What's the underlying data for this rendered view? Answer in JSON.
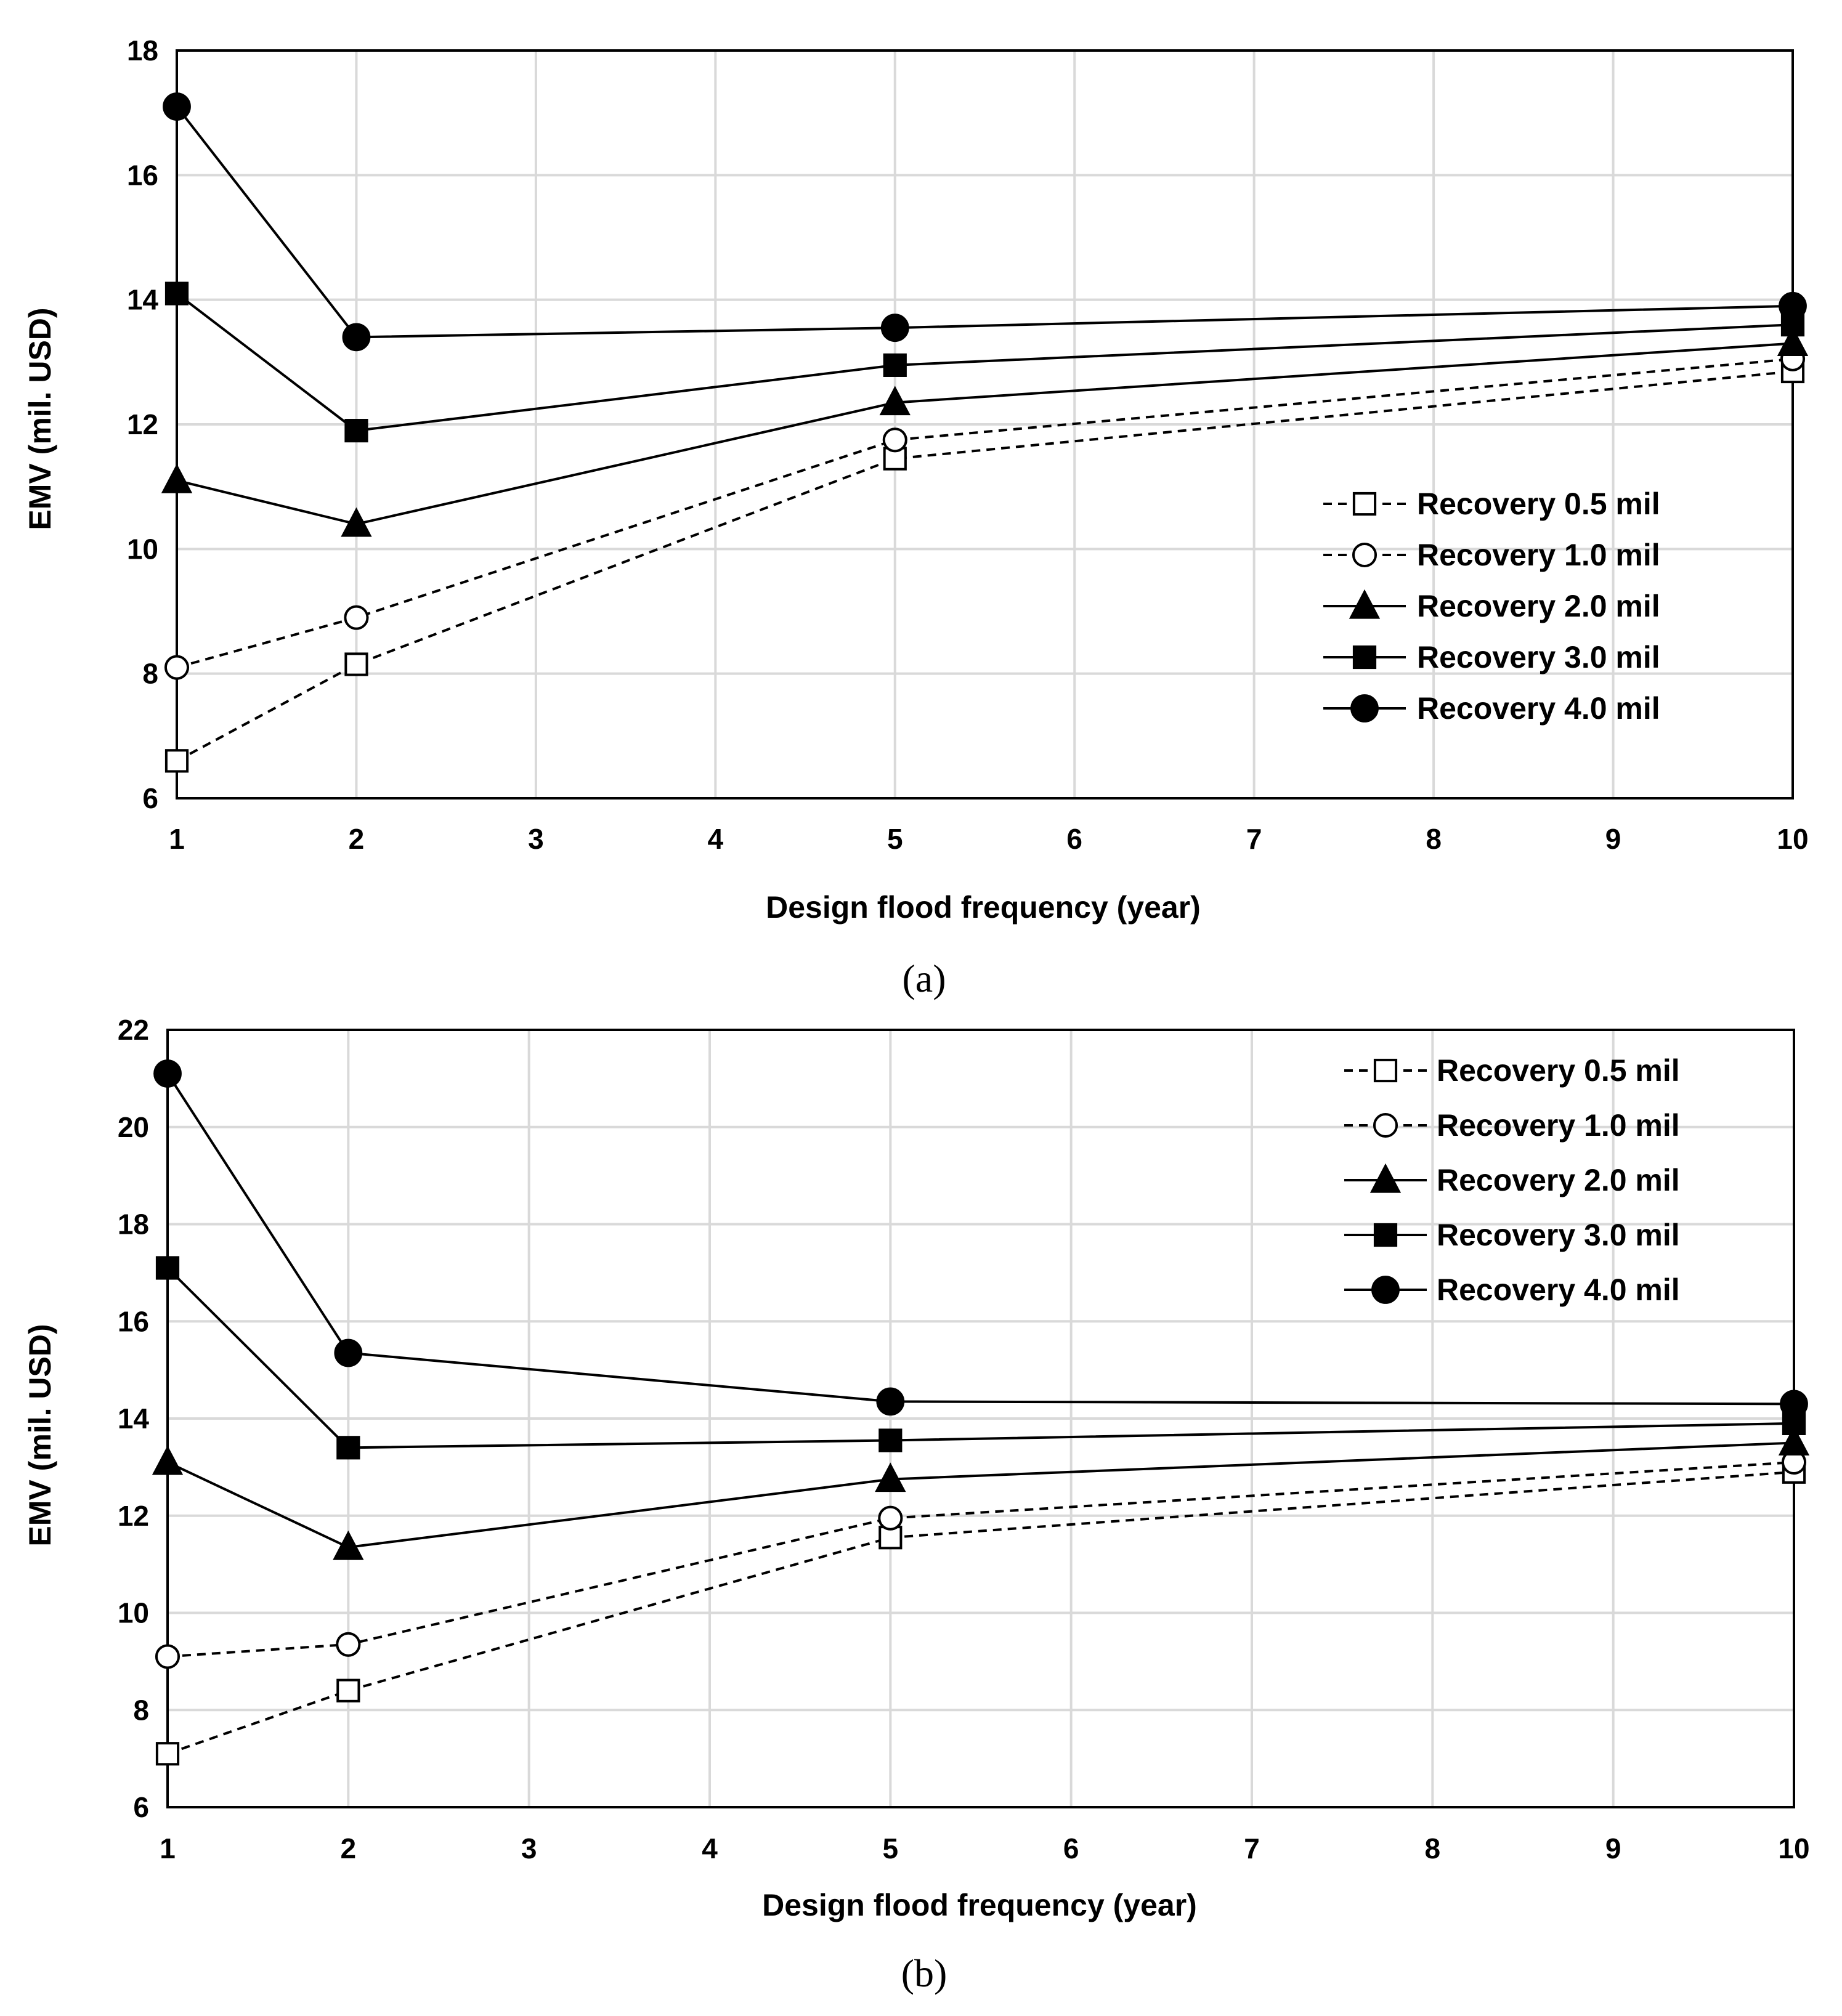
{
  "chart_data": [
    {
      "type": "line",
      "panel_label": "(a)",
      "title": "",
      "xlabel": "Design flood frequency (year)",
      "ylabel": "EMV (mil. USD)",
      "xlim": [
        1,
        10
      ],
      "ylim": [
        6,
        18
      ],
      "xticks": [
        1,
        2,
        3,
        4,
        5,
        6,
        7,
        8,
        9,
        10
      ],
      "yticks": [
        6,
        8,
        10,
        12,
        14,
        16,
        18
      ],
      "grid": true,
      "legend_position": "right",
      "x": [
        1,
        2,
        5,
        10
      ],
      "series": [
        {
          "name": "Recovery 0.5 mil",
          "values": [
            6.6,
            8.15,
            11.45,
            12.85
          ],
          "line": "dashed",
          "marker": "square-open",
          "color": "#000000"
        },
        {
          "name": "Recovery 1.0 mil",
          "values": [
            8.1,
            8.9,
            11.75,
            13.05
          ],
          "line": "dashed",
          "marker": "circle-open",
          "color": "#000000"
        },
        {
          "name": "Recovery 2.0 mil",
          "values": [
            11.1,
            10.4,
            12.35,
            13.3
          ],
          "line": "solid",
          "marker": "triangle-filled",
          "color": "#000000"
        },
        {
          "name": "Recovery 3.0 mil",
          "values": [
            14.1,
            11.9,
            12.95,
            13.6
          ],
          "line": "solid",
          "marker": "square-filled",
          "color": "#000000"
        },
        {
          "name": "Recovery 4.0 mil",
          "values": [
            17.1,
            13.4,
            13.55,
            13.9
          ],
          "line": "solid",
          "marker": "circle-filled",
          "color": "#000000"
        }
      ]
    },
    {
      "type": "line",
      "panel_label": "(b)",
      "title": "",
      "xlabel": "Design flood frequency (year)",
      "ylabel": "EMV (mil. USD)",
      "xlim": [
        1,
        10
      ],
      "ylim": [
        6,
        22
      ],
      "xticks": [
        1,
        2,
        3,
        4,
        5,
        6,
        7,
        8,
        9,
        10
      ],
      "yticks": [
        6,
        8,
        10,
        12,
        14,
        16,
        18,
        20,
        22
      ],
      "grid": true,
      "legend_position": "top-right",
      "x": [
        1,
        2,
        5,
        10
      ],
      "series": [
        {
          "name": "Recovery 0.5 mil",
          "values": [
            7.1,
            8.4,
            11.55,
            12.9
          ],
          "line": "dashed",
          "marker": "square-open",
          "color": "#000000"
        },
        {
          "name": "Recovery 1.0 mil",
          "values": [
            9.1,
            9.35,
            11.95,
            13.1
          ],
          "line": "dashed",
          "marker": "circle-open",
          "color": "#000000"
        },
        {
          "name": "Recovery 2.0 mil",
          "values": [
            13.1,
            11.35,
            12.75,
            13.5
          ],
          "line": "solid",
          "marker": "triangle-filled",
          "color": "#000000"
        },
        {
          "name": "Recovery 3.0 mil",
          "values": [
            17.1,
            13.4,
            13.55,
            13.9
          ],
          "line": "solid",
          "marker": "square-filled",
          "color": "#000000"
        },
        {
          "name": "Recovery 4.0 mil",
          "values": [
            21.1,
            15.35,
            14.35,
            14.3
          ],
          "line": "solid",
          "marker": "circle-filled",
          "color": "#000000"
        }
      ]
    }
  ]
}
